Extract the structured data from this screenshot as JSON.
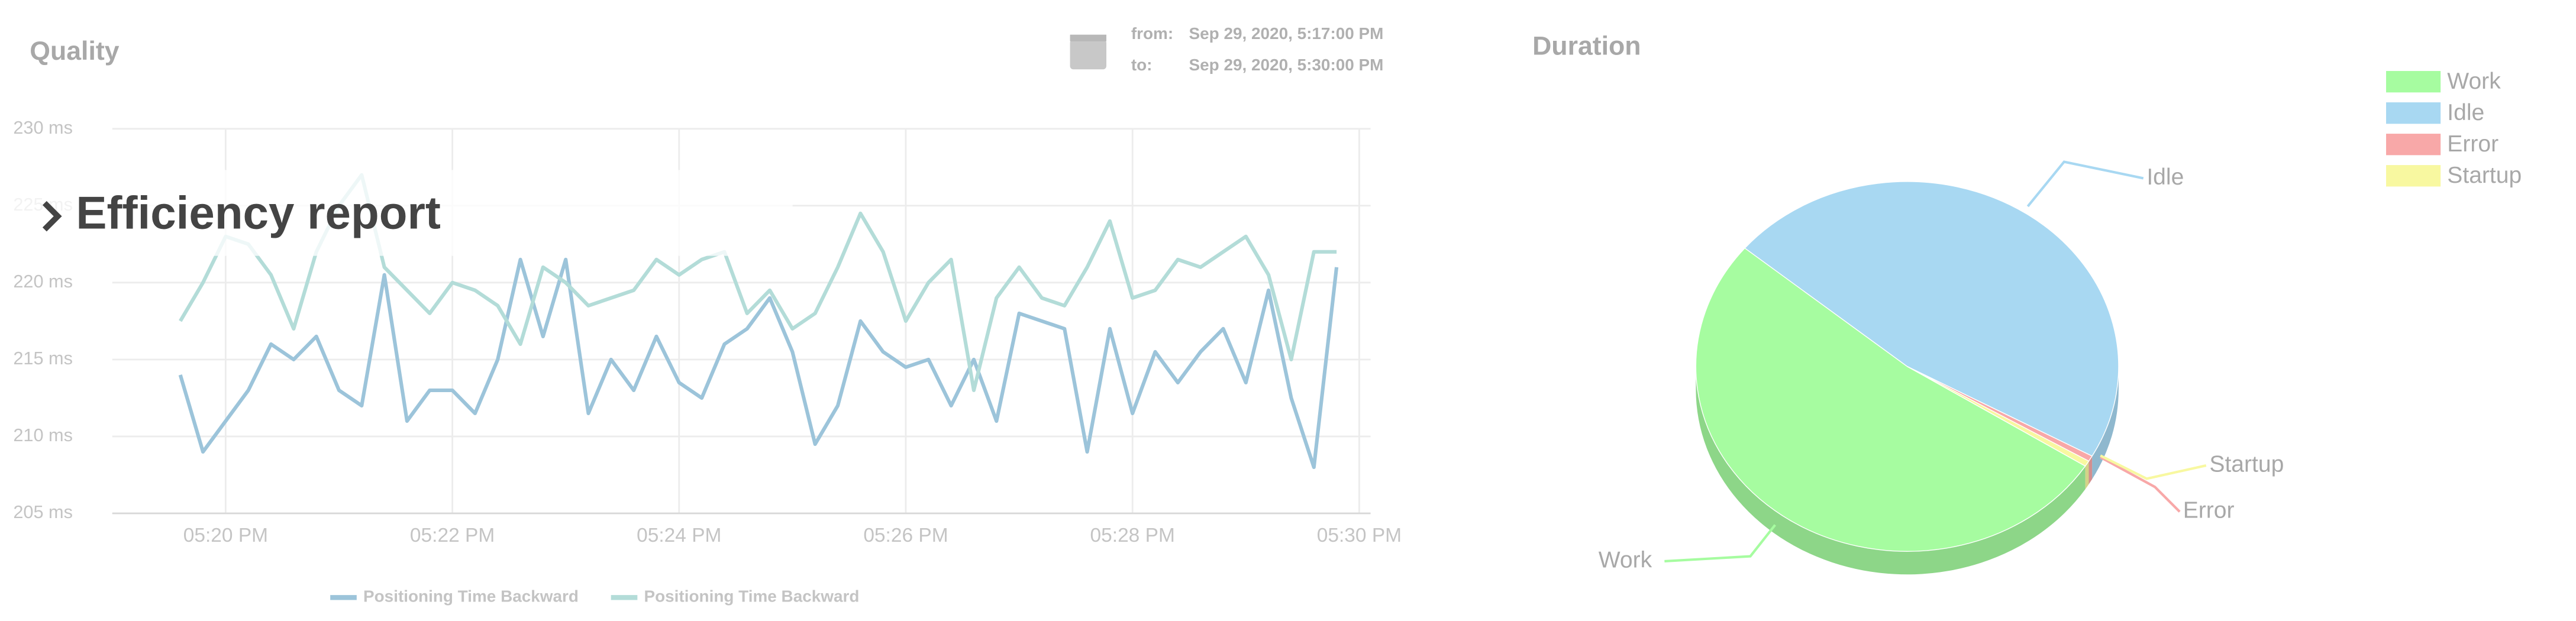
{
  "header": {
    "title": "Efficiency report"
  },
  "date_range": {
    "from_label": "from:",
    "from": "Sep 29, 2020, 5:17:00 PM",
    "to_label": "to:",
    "to": "Sep 29, 2020, 5:30:00 PM"
  },
  "chart_data": [
    {
      "type": "line",
      "title": "Quality",
      "x": [
        1039.6,
        1039.8,
        1040,
        1040.2,
        1040.4,
        1040.6,
        1040.8,
        1041,
        1041.2,
        1041.4,
        1041.6,
        1041.8,
        1042,
        1042.2,
        1042.4,
        1042.6,
        1042.8,
        1043,
        1043.2,
        1043.4,
        1043.6,
        1043.8,
        1044,
        1044.2,
        1044.4,
        1044.6,
        1044.8,
        1045,
        1045.2,
        1045.4,
        1045.6,
        1045.8,
        1046,
        1046.2,
        1046.4,
        1046.6,
        1046.8,
        1047,
        1047.2,
        1047.4,
        1047.6,
        1047.8,
        1048,
        1048.2,
        1048.4,
        1048.6,
        1048.8,
        1049,
        1049.2,
        1049.4,
        1049.6,
        1049.8
      ],
      "series": [
        {
          "name": "Positioning Time Backward",
          "color": "#9cc4da",
          "values": [
            214,
            209,
            211,
            213,
            216,
            215,
            216.5,
            213,
            212,
            220.5,
            211,
            213,
            213,
            211.5,
            215,
            221.5,
            216.5,
            221.5,
            211.5,
            215,
            213,
            216.5,
            213.5,
            212.5,
            216,
            217,
            219,
            215.5,
            209.5,
            212,
            217.5,
            215.5,
            214.5,
            215,
            212,
            215,
            211,
            218,
            217.5,
            217,
            209,
            217,
            211.5,
            215.5,
            213.5,
            215.5,
            217,
            213.5,
            219.5,
            212.5,
            208,
            221
          ]
        },
        {
          "name": "Positioning Time Backward",
          "color": "#b3dcd8",
          "values": [
            217.5,
            220,
            223,
            222.5,
            220.5,
            217,
            222,
            225,
            227,
            221,
            219.5,
            218,
            220,
            219.5,
            218.5,
            216,
            221,
            220,
            218.5,
            219,
            219.5,
            221.5,
            220.5,
            221.5,
            222,
            218,
            219.5,
            217,
            218,
            221,
            224.5,
            222,
            217.5,
            220,
            221.5,
            213,
            219,
            221,
            219,
            218.5,
            221,
            224,
            219,
            219.5,
            221.5,
            221,
            222,
            223,
            220.5,
            215,
            222,
            222
          ]
        }
      ],
      "xlim": [
        1039,
        1050.1
      ],
      "xticks": [
        {
          "value": 1040,
          "label": "05:20 PM"
        },
        {
          "value": 1042,
          "label": "05:22 PM"
        },
        {
          "value": 1044,
          "label": "05:24 PM"
        },
        {
          "value": 1046,
          "label": "05:26 PM"
        },
        {
          "value": 1048,
          "label": "05:28 PM"
        },
        {
          "value": 1050,
          "label": "05:30 PM"
        }
      ],
      "ylim": [
        205,
        230
      ],
      "yticks": [
        {
          "value": 205,
          "label": "205 ms"
        },
        {
          "value": 210,
          "label": "210 ms"
        },
        {
          "value": 215,
          "label": "215 ms"
        },
        {
          "value": 220,
          "label": "220 ms"
        },
        {
          "value": 225,
          "label": "225 ms"
        },
        {
          "value": 230,
          "label": "230 ms"
        }
      ],
      "grid": true,
      "legend": "bottom"
    },
    {
      "type": "pie",
      "title": "Duration",
      "categories": [
        "Work",
        "Idle",
        "Error",
        "Startup"
      ],
      "values": [
        52,
        47,
        0.5,
        0.5
      ],
      "colors": [
        "#a6fca0",
        "#a8d8f2",
        "#f8a8a8",
        "#f8f8a0"
      ],
      "legend": "top-right"
    }
  ]
}
